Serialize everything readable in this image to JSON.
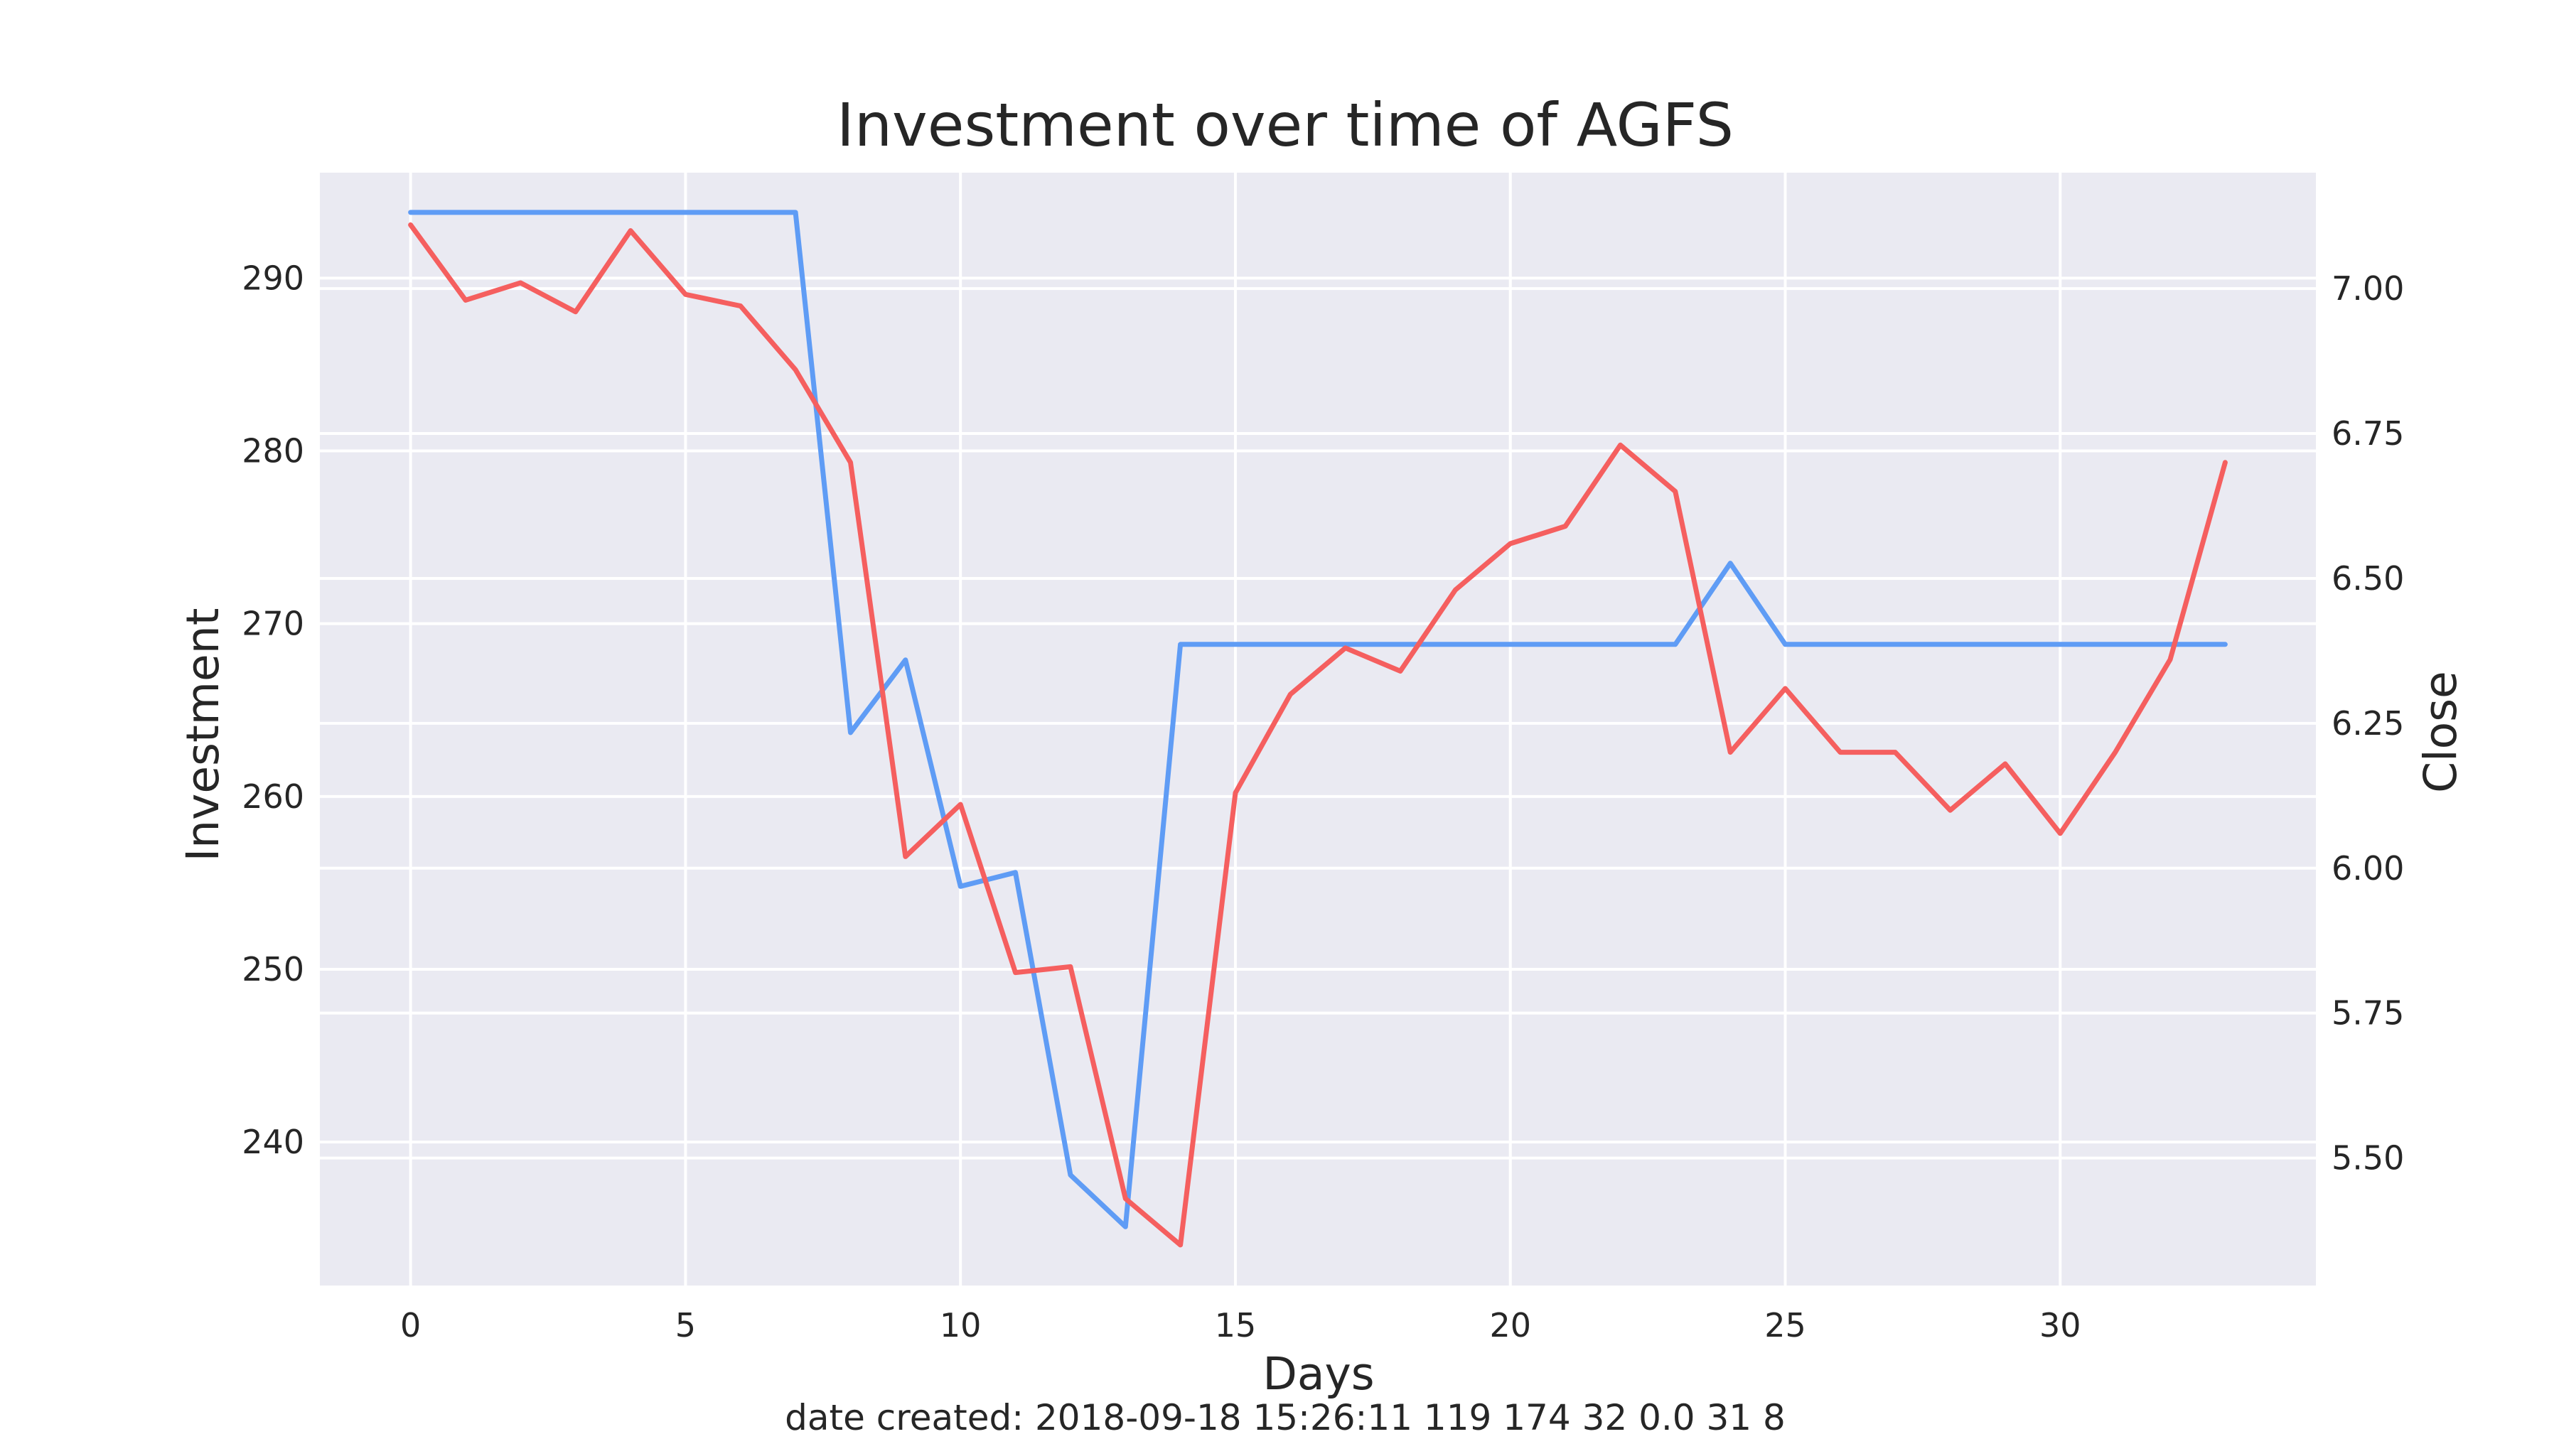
{
  "chart_data": {
    "type": "line",
    "title": "Investment over time of AGFS",
    "xlabel": "Days",
    "ylabel_left": "Investment",
    "ylabel_right": "Close",
    "xlim": [
      -1.65,
      34.65
    ],
    "ylim_left": [
      231.7,
      296.1
    ],
    "ylim_right": [
      5.28,
      7.2
    ],
    "x_ticks": [
      0,
      5,
      10,
      15,
      20,
      25,
      30
    ],
    "y_left_ticks": [
      240,
      250,
      260,
      270,
      280,
      290
    ],
    "y_right_ticks": [
      "5.50",
      "5.75",
      "6.00",
      "6.25",
      "6.50",
      "6.75",
      "7.00"
    ],
    "grid": true,
    "footer": "date created: 2018-09-18 15:26:11 119 174 32 0.0 31 8",
    "colors": {
      "investment": "#5f9cf5",
      "close": "#f55f5f",
      "background": "#eaeaf2",
      "grid": "#ffffff",
      "text": "#262626"
    },
    "x": [
      0,
      1,
      2,
      3,
      4,
      5,
      6,
      7,
      8,
      9,
      10,
      11,
      12,
      13,
      14,
      15,
      16,
      17,
      18,
      19,
      20,
      21,
      22,
      23,
      24,
      25,
      26,
      27,
      28,
      29,
      30,
      31,
      32,
      33
    ],
    "series": [
      {
        "axis": "left",
        "values": [
          293.8,
          293.8,
          293.8,
          293.8,
          293.8,
          293.8,
          293.8,
          293.8,
          263.7,
          267.9,
          254.8,
          255.6,
          238.1,
          235.1,
          268.8,
          268.8,
          268.8,
          268.8,
          268.8,
          268.8,
          268.8,
          268.8,
          268.8,
          268.8,
          273.5,
          268.8,
          268.8,
          268.8,
          268.8,
          268.8,
          268.8,
          268.8,
          268.8,
          268.8
        ]
      },
      {
        "axis": "right",
        "values": [
          7.11,
          6.98,
          7.01,
          6.96,
          7.1,
          6.99,
          6.97,
          6.86,
          6.7,
          6.02,
          6.11,
          5.82,
          5.83,
          5.43,
          5.35,
          6.13,
          6.3,
          6.38,
          6.34,
          6.48,
          6.56,
          6.59,
          6.73,
          6.65,
          6.2,
          6.31,
          6.2,
          6.2,
          6.1,
          6.18,
          6.06,
          6.2,
          6.36,
          6.7
        ]
      }
    ]
  }
}
